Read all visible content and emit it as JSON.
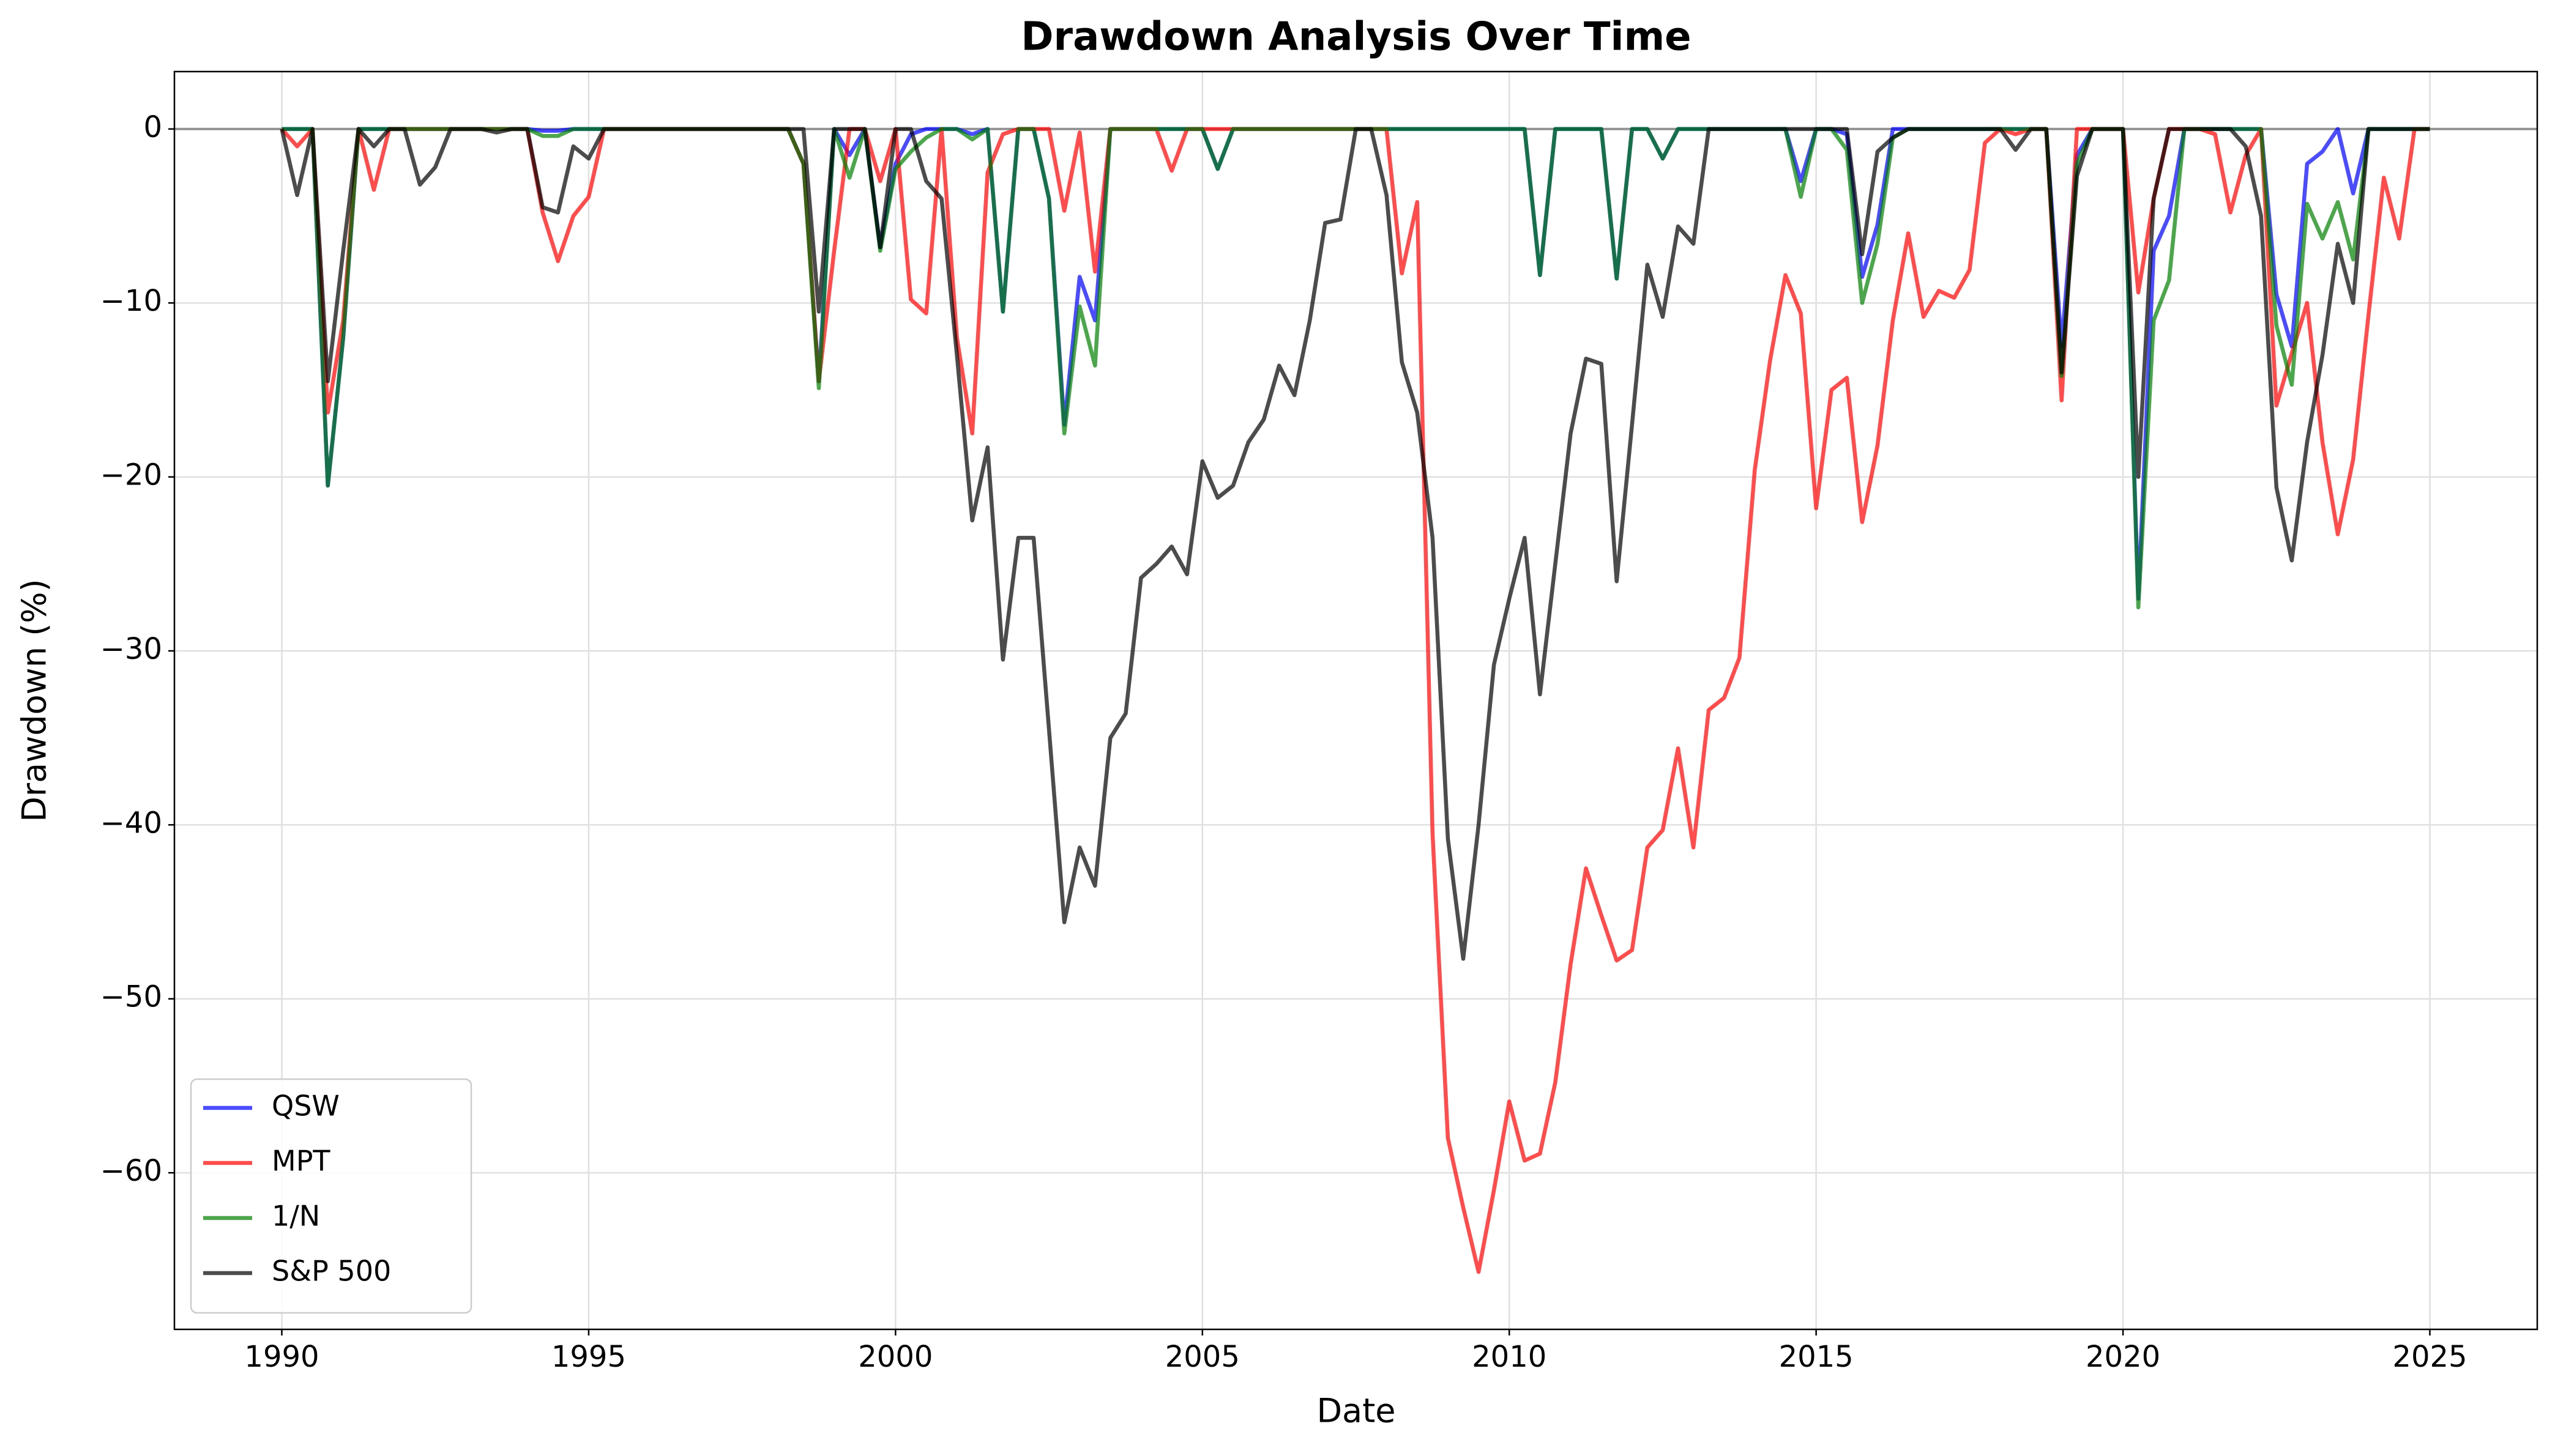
{
  "chart_data": {
    "type": "line",
    "title": "Drawdown Analysis Over Time",
    "x_label": "Date",
    "y_label": "Drawdown (%)",
    "x": [
      1990,
      1990.25,
      1990.5,
      1990.75,
      1991,
      1991.25,
      1991.5,
      1991.75,
      1992,
      1992.25,
      1992.5,
      1992.75,
      1993,
      1993.25,
      1993.5,
      1993.75,
      1994,
      1994.25,
      1994.5,
      1994.75,
      1995,
      1995.25,
      1995.5,
      1995.75,
      1996,
      1996.25,
      1996.5,
      1996.75,
      1997,
      1997.25,
      1997.5,
      1997.75,
      1998,
      1998.25,
      1998.5,
      1998.75,
      1999,
      1999.25,
      1999.5,
      1999.75,
      2000,
      2000.25,
      2000.5,
      2000.75,
      2001,
      2001.25,
      2001.5,
      2001.75,
      2002,
      2002.25,
      2002.5,
      2002.75,
      2003,
      2003.25,
      2003.5,
      2003.75,
      2004,
      2004.25,
      2004.5,
      2004.75,
      2005,
      2005.25,
      2005.5,
      2005.75,
      2006,
      2006.25,
      2006.5,
      2006.75,
      2007,
      2007.25,
      2007.5,
      2007.75,
      2008,
      2008.25,
      2008.5,
      2008.75,
      2009,
      2009.25,
      2009.5,
      2009.75,
      2010,
      2010.25,
      2010.5,
      2010.75,
      2011,
      2011.25,
      2011.5,
      2011.75,
      2012,
      2012.25,
      2012.5,
      2012.75,
      2013,
      2013.25,
      2013.5,
      2013.75,
      2014,
      2014.25,
      2014.5,
      2014.75,
      2015,
      2015.25,
      2015.5,
      2015.75,
      2016,
      2016.25,
      2016.5,
      2016.75,
      2017,
      2017.25,
      2017.5,
      2017.75,
      2018,
      2018.25,
      2018.5,
      2018.75,
      2019,
      2019.25,
      2019.5,
      2019.75,
      2020,
      2020.25,
      2020.5,
      2020.75,
      2021,
      2021.25,
      2021.5,
      2021.75,
      2022,
      2022.25,
      2022.5,
      2022.75,
      2023,
      2023.25,
      2023.5,
      2023.75,
      2024,
      2024.25,
      2024.5,
      2024.75,
      2025
    ],
    "series": [
      {
        "name": "QSW",
        "color": "blue",
        "values": [
          0,
          0,
          0,
          -20.5,
          -12,
          0,
          0,
          0,
          0,
          0,
          0,
          0,
          0,
          0,
          0,
          0,
          0,
          -0.1,
          -0.1,
          0,
          0,
          0,
          0,
          0,
          0,
          0,
          0,
          0,
          0,
          0,
          0,
          0,
          0,
          0,
          -2,
          -14.5,
          0,
          -1.5,
          0,
          -6.8,
          -2,
          -0.3,
          0,
          0,
          0,
          -0.3,
          0,
          -10.5,
          0,
          0,
          -4,
          -17,
          -8.5,
          -11,
          0,
          0,
          0,
          0,
          0,
          0,
          0,
          -2.3,
          0,
          0,
          0,
          0,
          0,
          0,
          0,
          0,
          0,
          0,
          0,
          0,
          0,
          0,
          0,
          0,
          0,
          0,
          0,
          0,
          -8.4,
          0,
          0,
          0,
          0,
          -8.6,
          0,
          0,
          -1.7,
          0,
          0,
          0,
          0,
          0,
          0,
          0,
          0,
          -3,
          0,
          0,
          -0.3,
          -8.5,
          -5.5,
          0,
          0,
          0,
          0,
          0,
          0,
          0,
          0,
          0,
          0,
          0,
          -12.5,
          -1.5,
          0,
          0,
          0,
          -27,
          -7,
          -5,
          0,
          0,
          0,
          0,
          0,
          0,
          -9.5,
          -12.5,
          -2,
          -1.3,
          0,
          -3.7,
          0,
          0,
          0,
          0,
          0
        ]
      },
      {
        "name": "MPT",
        "color": "red",
        "values": [
          0,
          -1,
          0,
          -16.3,
          -11,
          0,
          -3.5,
          0,
          0,
          0,
          0,
          0,
          0,
          0,
          0,
          0,
          0,
          -4.8,
          -7.6,
          -5,
          -3.9,
          0,
          0,
          0,
          0,
          0,
          0,
          0,
          0,
          0,
          0,
          0,
          0,
          0,
          -2,
          -14.5,
          -7,
          0,
          0,
          -3,
          0,
          -9.8,
          -10.6,
          0,
          -12,
          -17.5,
          -2.5,
          -0.3,
          0,
          0,
          0,
          -4.7,
          -0.2,
          -8.2,
          0,
          0,
          0,
          0,
          -2.4,
          0,
          0,
          0,
          0,
          0,
          0,
          0,
          0,
          0,
          0,
          0,
          0,
          0,
          0,
          -8.3,
          -4.2,
          -40.5,
          -58,
          -62,
          -65.7,
          -61,
          -55.9,
          -59.3,
          -58.9,
          -54.8,
          -48,
          -42.5,
          -45.2,
          -47.8,
          -47.2,
          -41.3,
          -40.3,
          -35.6,
          -41.3,
          -33.4,
          -32.7,
          -30.4,
          -19.6,
          -13.3,
          -8.4,
          -10.6,
          -21.8,
          -15,
          -14.3,
          -22.6,
          -18.2,
          -11,
          -6,
          -10.8,
          -9.3,
          -9.7,
          -8.1,
          -0.8,
          0,
          -0.3,
          0,
          0,
          -15.6,
          0,
          0,
          0,
          0,
          -9.4,
          -4,
          0,
          0,
          0,
          -0.3,
          -4.8,
          -1.5,
          0,
          -15.9,
          -12.9,
          -10,
          -18,
          -23.3,
          -19,
          -10.7,
          -2.8,
          -6.3,
          0,
          0
        ]
      },
      {
        "name": "1/N",
        "color": "green",
        "values": [
          0,
          0,
          0,
          -20.5,
          -12,
          0,
          0,
          0,
          0,
          0,
          0,
          0,
          0,
          0,
          0,
          0,
          0,
          -0.4,
          -0.4,
          0,
          0,
          0,
          0,
          0,
          0,
          0,
          0,
          0,
          0,
          0,
          0,
          0,
          0,
          0,
          -2,
          -14.9,
          0,
          -2.8,
          0,
          -7,
          -2.3,
          -1.3,
          -0.5,
          0,
          0,
          -0.6,
          0,
          -10.5,
          0,
          0,
          -4,
          -17.5,
          -10.2,
          -13.6,
          0,
          0,
          0,
          0,
          0,
          0,
          0,
          -2.3,
          0,
          0,
          0,
          0,
          0,
          0,
          0,
          0,
          0,
          0,
          0,
          0,
          0,
          0,
          0,
          0,
          0,
          0,
          0,
          0,
          -8.4,
          0,
          0,
          0,
          0,
          -8.6,
          0,
          0,
          -1.7,
          0,
          0,
          0,
          0,
          0,
          0,
          0,
          0,
          -3.9,
          0,
          0,
          -1.2,
          -10,
          -6.6,
          -0.5,
          0,
          0,
          0,
          0,
          0,
          0,
          0,
          0,
          0,
          0,
          -14.2,
          -2,
          0,
          0,
          0,
          -27.5,
          -11,
          -8.7,
          0,
          0,
          0,
          0,
          0,
          0,
          -11.3,
          -14.7,
          -4.3,
          -6.3,
          -4.2,
          -7.5,
          0,
          0,
          0,
          0,
          0
        ]
      },
      {
        "name": "S&P 500",
        "color": "black",
        "values": [
          0,
          -3.8,
          0,
          -14.5,
          -7,
          0,
          -1,
          0,
          0,
          -3.2,
          -2.2,
          0,
          0,
          0,
          -0.2,
          0,
          0,
          -4.5,
          -4.8,
          -1,
          -1.7,
          0,
          0,
          0,
          0,
          0,
          0,
          0,
          0,
          0,
          0,
          0,
          0,
          0,
          0,
          -10.5,
          0,
          0,
          0,
          -6.8,
          0,
          0,
          -3,
          -4,
          -13,
          -22.5,
          -18.3,
          -30.5,
          -23.5,
          -23.5,
          -34.5,
          -45.6,
          -41.3,
          -43.5,
          -35,
          -33.6,
          -25.8,
          -25,
          -24,
          -25.6,
          -19.1,
          -21.2,
          -20.5,
          -18,
          -16.7,
          -13.6,
          -15.3,
          -11,
          -5.4,
          -5.2,
          0,
          0,
          -3.8,
          -13.4,
          -16.3,
          -23.5,
          -40.8,
          -47.7,
          -40,
          -30.8,
          -27,
          -23.5,
          -32.5,
          -25,
          -17.5,
          -13.2,
          -13.5,
          -26,
          -17,
          -7.8,
          -10.8,
          -5.6,
          -6.6,
          0,
          0,
          0,
          0,
          0,
          0,
          0,
          0,
          0,
          0,
          -7.2,
          -1.3,
          -0.5,
          0,
          0,
          0,
          0,
          0,
          0,
          0,
          -1.2,
          0,
          0,
          -14,
          -2.7,
          0,
          0,
          0,
          -20,
          -4,
          0,
          0,
          0,
          0,
          0,
          -1,
          -5,
          -20.6,
          -24.8,
          -18,
          -13,
          -6.6,
          -10,
          0,
          0,
          0,
          0,
          0
        ]
      }
    ],
    "xlim": [
      1988.25,
      2026.75
    ],
    "xticks": [
      1990,
      1995,
      2000,
      2005,
      2010,
      2015,
      2020,
      2025
    ],
    "ylim": [
      -69,
      3.3
    ],
    "yticks": [
      -60,
      -50,
      -40,
      -30,
      -20,
      -10,
      0
    ],
    "grid": true,
    "legend": "lower left"
  }
}
